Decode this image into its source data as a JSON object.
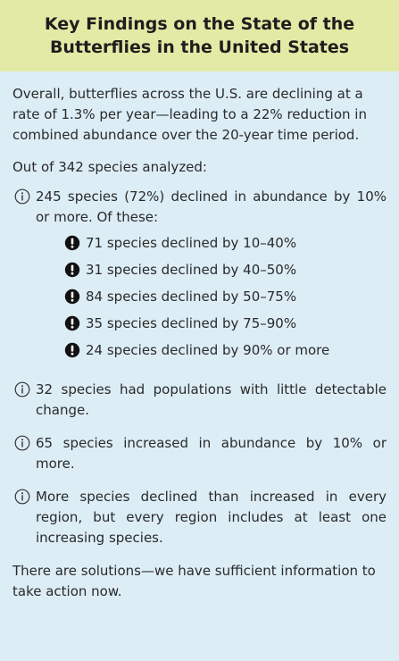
{
  "header": {
    "title": "Key Findings on the State of the Butterflies in the United States"
  },
  "body": {
    "intro": "Overall, butterflies across the U.S. are declining at a rate of 1.3% per year—leading to a 22% reduction in combined abundance over the 20-year time period.",
    "lead": "Out of 342 species analyzed:",
    "items": [
      {
        "text": "245 species (72%) declined in abundance by 10% or more. Of these:",
        "subitems": [
          "71 species declined by 10–40%",
          "31 species declined by 40–50%",
          "84 species declined by 50–75%",
          "35 species declined by 75–90%",
          "24 species declined by 90% or more"
        ]
      },
      {
        "text": "32 species had populations with little detectable change."
      },
      {
        "text": "65 species increased in abundance by 10% or more."
      },
      {
        "text": "More species declined than increased in every region, but every region includes at least one increasing species."
      }
    ],
    "closing": "There are solutions—we have sufficient information to take action now."
  }
}
